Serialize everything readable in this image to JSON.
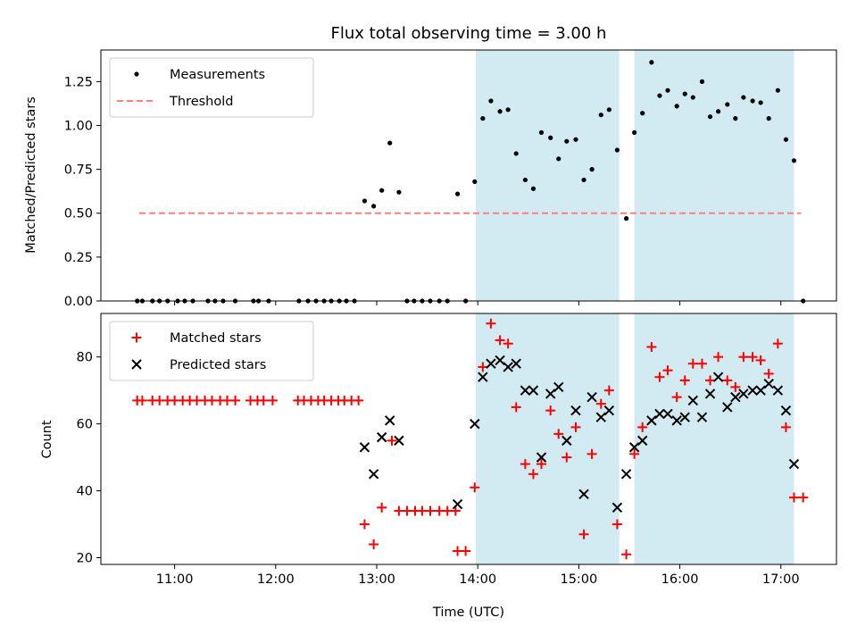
{
  "figure": {
    "title": "Flux total observing time = 3.00 h",
    "xlabel": "Time (UTC)",
    "xticks": [
      {
        "value": 11,
        "label": "11:00"
      },
      {
        "value": 12,
        "label": "12:00"
      },
      {
        "value": 13,
        "label": "13:00"
      },
      {
        "value": 14,
        "label": "14:00"
      },
      {
        "value": 15,
        "label": "15:00"
      },
      {
        "value": 16,
        "label": "16:00"
      },
      {
        "value": 17,
        "label": "17:00"
      }
    ],
    "xlim": [
      10.27,
      17.55
    ],
    "shaded_intervals": [
      [
        13.98,
        15.4
      ],
      [
        15.55,
        17.13
      ]
    ],
    "colors": {
      "shade": "#add8e6",
      "threshold": "#ff7f7f",
      "matched": "#ff0000",
      "predicted": "#000000",
      "measure": "#000000"
    }
  },
  "chart_data": [
    {
      "type": "scatter",
      "ylabel": "Matched/Predicted stars",
      "ylim": [
        0,
        1.43
      ],
      "yticks": [
        {
          "value": 0.0,
          "label": "0.00"
        },
        {
          "value": 0.25,
          "label": "0.25"
        },
        {
          "value": 0.5,
          "label": "0.50"
        },
        {
          "value": 0.75,
          "label": "0.75"
        },
        {
          "value": 1.0,
          "label": "1.00"
        },
        {
          "value": 1.25,
          "label": "1.25"
        }
      ],
      "threshold": {
        "name": "Threshold",
        "value": 0.5,
        "x": [
          10.65,
          17.2
        ]
      },
      "legend": [
        "Measurements",
        "Threshold"
      ],
      "series": [
        {
          "name": "Measurements",
          "x": [
            10.63,
            10.68,
            10.78,
            10.85,
            10.93,
            11.03,
            11.1,
            11.18,
            11.33,
            11.4,
            11.48,
            11.6,
            11.78,
            11.83,
            11.93,
            12.23,
            12.32,
            12.4,
            12.48,
            12.55,
            12.63,
            12.7,
            12.78,
            12.88,
            12.97,
            13.05,
            13.13,
            13.22,
            13.3,
            13.37,
            13.45,
            13.53,
            13.62,
            13.7,
            13.8,
            13.88,
            13.97,
            14.05,
            14.13,
            14.22,
            14.3,
            14.38,
            14.47,
            14.55,
            14.63,
            14.72,
            14.8,
            14.88,
            14.97,
            15.05,
            15.13,
            15.22,
            15.3,
            15.38,
            15.47,
            15.55,
            15.63,
            15.72,
            15.8,
            15.88,
            15.97,
            16.05,
            16.13,
            16.22,
            16.3,
            16.38,
            16.47,
            16.55,
            16.63,
            16.72,
            16.8,
            16.88,
            16.97,
            17.05,
            17.13,
            17.22
          ],
          "y": [
            0,
            0,
            0,
            0,
            0,
            0,
            0,
            0,
            0,
            0,
            0,
            0,
            0,
            0,
            0,
            0,
            0,
            0,
            0,
            0,
            0,
            0,
            0,
            0.57,
            0.54,
            0.63,
            0.9,
            0.62,
            0,
            0,
            0,
            0,
            0,
            0,
            0.61,
            0,
            0.68,
            1.04,
            1.14,
            1.08,
            1.09,
            0.84,
            0.69,
            0.64,
            0.96,
            0.93,
            0.81,
            0.91,
            0.92,
            0.69,
            0.75,
            1.06,
            1.09,
            0.86,
            0.47,
            0.96,
            1.07,
            1.36,
            1.17,
            1.2,
            1.11,
            1.18,
            1.16,
            1.25,
            1.05,
            1.08,
            1.12,
            1.04,
            1.16,
            1.14,
            1.13,
            1.04,
            1.2,
            0.92,
            0.8,
            0.0
          ]
        }
      ]
    },
    {
      "type": "scatter",
      "ylabel": "Count",
      "ylim": [
        18,
        93
      ],
      "yticks": [
        {
          "value": 20,
          "label": "20"
        },
        {
          "value": 40,
          "label": "40"
        },
        {
          "value": 60,
          "label": "60"
        },
        {
          "value": 80,
          "label": "80"
        }
      ],
      "legend": [
        "Matched stars",
        "Predicted stars"
      ],
      "series": [
        {
          "name": "Matched stars",
          "marker": "+",
          "x": [
            10.63,
            10.68,
            10.78,
            10.85,
            10.93,
            11.0,
            11.08,
            11.15,
            11.22,
            11.3,
            11.37,
            11.45,
            11.52,
            11.6,
            11.75,
            11.82,
            11.88,
            11.97,
            12.22,
            12.28,
            12.35,
            12.42,
            12.48,
            12.55,
            12.62,
            12.68,
            12.75,
            12.82,
            12.88,
            12.97,
            13.05,
            13.15,
            13.22,
            13.3,
            13.38,
            13.45,
            13.53,
            13.62,
            13.7,
            13.78,
            13.8,
            13.88,
            13.97,
            14.05,
            14.13,
            14.22,
            14.3,
            14.38,
            14.47,
            14.55,
            14.63,
            14.72,
            14.8,
            14.88,
            14.97,
            15.05,
            15.13,
            15.22,
            15.3,
            15.38,
            15.47,
            15.55,
            15.63,
            15.72,
            15.8,
            15.88,
            15.97,
            16.05,
            16.13,
            16.22,
            16.3,
            16.38,
            16.47,
            16.55,
            16.63,
            16.72,
            16.8,
            16.88,
            16.97,
            17.05,
            17.13,
            17.22
          ],
          "y": [
            67,
            67,
            67,
            67,
            67,
            67,
            67,
            67,
            67,
            67,
            67,
            67,
            67,
            67,
            67,
            67,
            67,
            67,
            67,
            67,
            67,
            67,
            67,
            67,
            67,
            67,
            67,
            67,
            30,
            24,
            35,
            55,
            34,
            34,
            34,
            34,
            34,
            34,
            34,
            34,
            22,
            22,
            41,
            77,
            90,
            85,
            84,
            65,
            48,
            45,
            48,
            64,
            57,
            50,
            59,
            27,
            51,
            66,
            70,
            30,
            21,
            51,
            59,
            83,
            74,
            76,
            68,
            73,
            78,
            78,
            73,
            80,
            73,
            71,
            80,
            80,
            79,
            75,
            84,
            59,
            38,
            38
          ]
        },
        {
          "name": "Predicted stars",
          "marker": "x",
          "x": [
            12.88,
            12.97,
            13.05,
            13.13,
            13.22,
            13.8,
            13.97,
            14.05,
            14.13,
            14.22,
            14.3,
            14.38,
            14.47,
            14.55,
            14.63,
            14.72,
            14.8,
            14.88,
            14.97,
            15.05,
            15.13,
            15.22,
            15.3,
            15.38,
            15.47,
            15.55,
            15.63,
            15.72,
            15.8,
            15.88,
            15.97,
            16.05,
            16.13,
            16.22,
            16.3,
            16.38,
            16.47,
            16.55,
            16.63,
            16.72,
            16.8,
            16.88,
            16.97,
            17.05,
            17.13
          ],
          "y": [
            53,
            45,
            56,
            61,
            55,
            36,
            60,
            74,
            78,
            79,
            77,
            78,
            70,
            70,
            50,
            69,
            71,
            55,
            64,
            39,
            68,
            62,
            64,
            35,
            45,
            53,
            55,
            61,
            63,
            63,
            61,
            62,
            67,
            62,
            69,
            74,
            65,
            68,
            69,
            70,
            70,
            72,
            70,
            64,
            48
          ]
        }
      ]
    }
  ]
}
